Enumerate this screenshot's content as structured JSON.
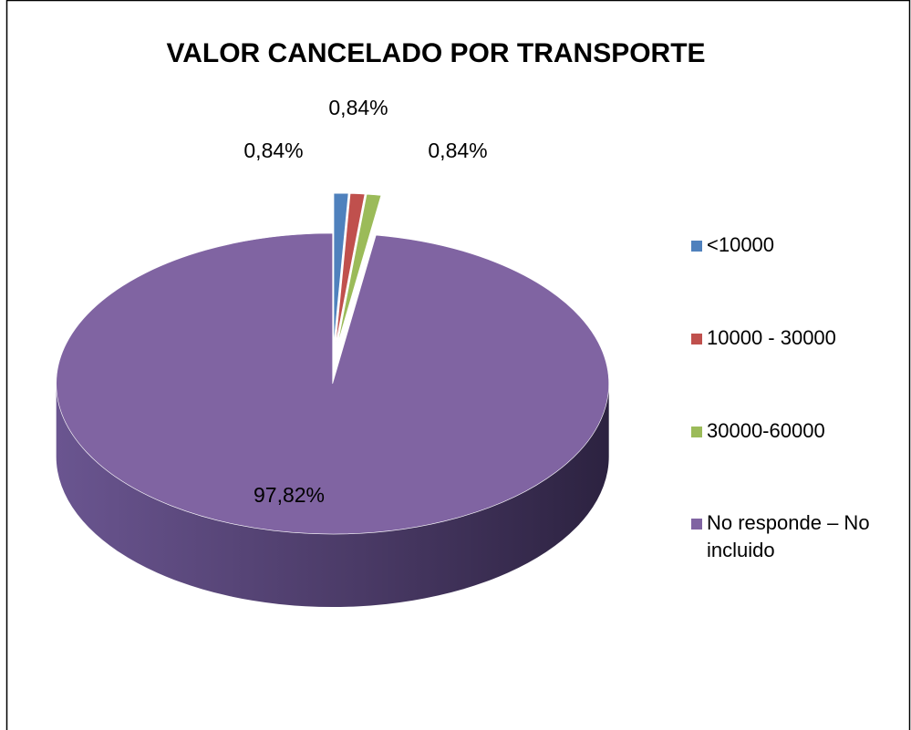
{
  "chart_data": {
    "type": "pie",
    "title": "VALOR CANCELADO POR TRANSPORTE",
    "categories": [
      "<10000",
      "10000 - 30000",
      "30000-60000",
      "No responde – No incluido"
    ],
    "values": [
      0.84,
      0.84,
      0.84,
      97.82
    ],
    "value_labels": [
      "0,84%",
      "0,84%",
      "0,84%",
      "97,82%"
    ],
    "colors": [
      "#4f81bd",
      "#c0504d",
      "#9bbb59",
      "#8064a2"
    ],
    "legend": "right"
  }
}
